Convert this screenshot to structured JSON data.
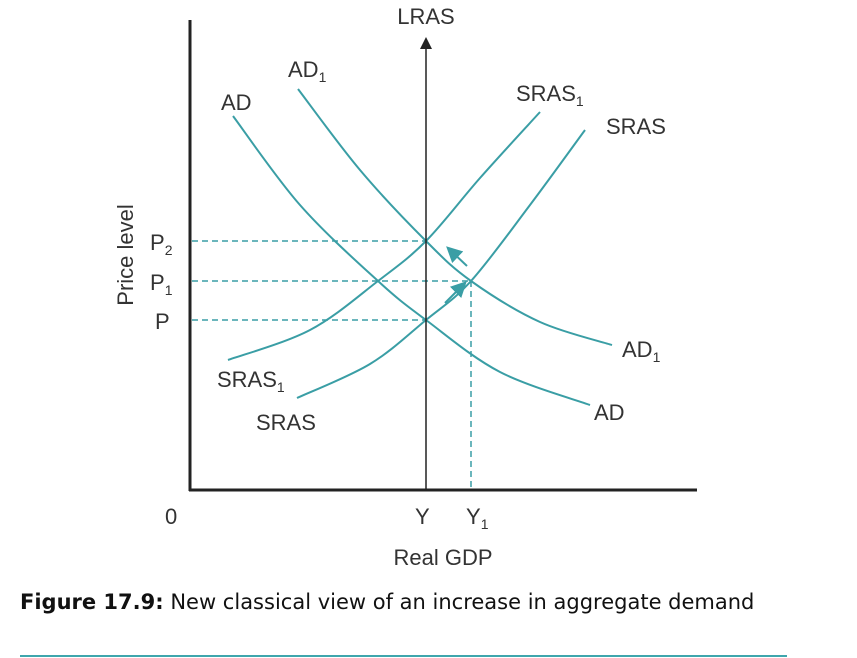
{
  "diagram": {
    "y_axis_label": "Price level",
    "x_axis_label": "Real GDP",
    "origin_label": "0",
    "lras_label": "LRAS",
    "price_ticks": [
      {
        "base": "P",
        "sub": "2"
      },
      {
        "base": "P",
        "sub": "1"
      },
      {
        "base": "P",
        "sub": ""
      }
    ],
    "output_ticks": [
      {
        "base": "Y",
        "sub": ""
      },
      {
        "base": "Y",
        "sub": "1"
      }
    ],
    "curves": {
      "ad": {
        "base": "AD",
        "sub": ""
      },
      "ad1": {
        "base": "AD",
        "sub": "1"
      },
      "sras": {
        "base": "SRAS",
        "sub": ""
      },
      "sras1": {
        "base": "SRAS",
        "sub": "1"
      }
    },
    "colors": {
      "curve": "#3a9ea5",
      "axis": "#222222",
      "rule": "#3fa6ad"
    }
  },
  "caption": {
    "label": "Figure 17.9:",
    "text": " New classical view of an increase in aggregate demand"
  }
}
